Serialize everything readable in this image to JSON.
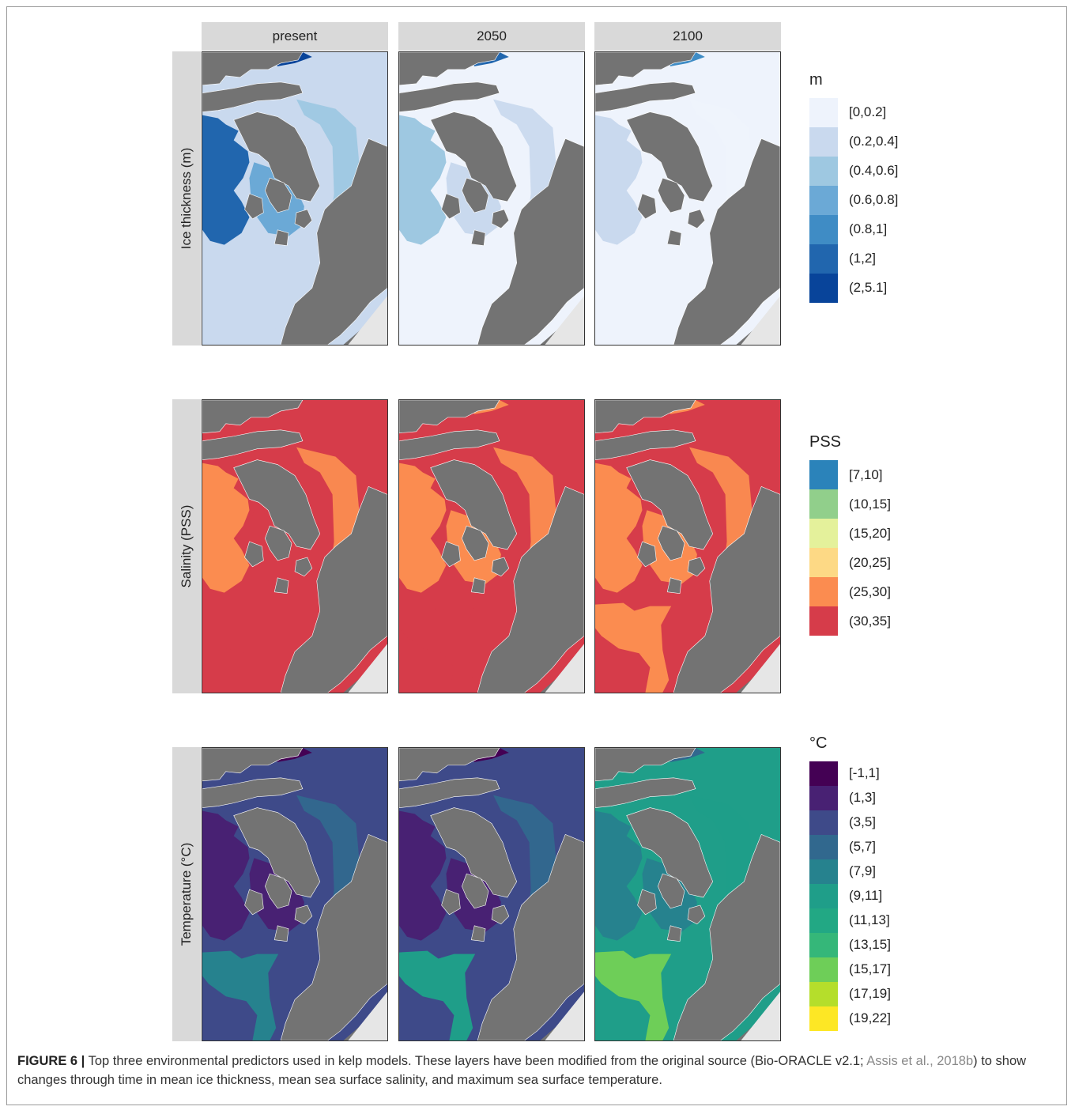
{
  "columns": [
    "present",
    "2050",
    "2100"
  ],
  "rows": [
    {
      "label": "Ice thickness (m)",
      "legend_title": "m",
      "classes": [
        {
          "label": "[0,0.2]",
          "color": "#eef3fc"
        },
        {
          "label": "(0.2,0.4]",
          "color": "#c9d9ee"
        },
        {
          "label": "(0.4,0.6]",
          "color": "#9ec8e1"
        },
        {
          "label": "(0.6,0.8]",
          "color": "#6ba9d6"
        },
        {
          "label": "(0.8,1]",
          "color": "#3f8cc5"
        },
        {
          "label": "(1,2]",
          "color": "#2166ae"
        },
        {
          "label": "(2,5.1]",
          "color": "#08449a"
        }
      ],
      "maps": [
        {
          "sea": 1,
          "fjord": 5,
          "bay": 1,
          "core": 3,
          "plume": 2,
          "north": 6
        },
        {
          "sea": 0,
          "fjord": 2,
          "bay": 0,
          "core": 1,
          "plume": 1,
          "north": 5
        },
        {
          "sea": 0,
          "fjord": 1,
          "bay": 0,
          "core": 0,
          "plume": 0,
          "north": 4
        }
      ]
    },
    {
      "label": "Salinity (PSS)",
      "legend_title": "PSS",
      "classes": [
        {
          "label": "[7,10]",
          "color": "#2b83ba"
        },
        {
          "label": "(10,15]",
          "color": "#91cf8b"
        },
        {
          "label": "(15,20]",
          "color": "#e4f19b"
        },
        {
          "label": "(20,25]",
          "color": "#fdd985"
        },
        {
          "label": "(25,30]",
          "color": "#fb8c50"
        },
        {
          "label": "(30,35]",
          "color": "#d63c4a"
        }
      ],
      "maps": [
        {
          "sea": 5,
          "fjord": 4,
          "bay": 5,
          "core": 5,
          "plume": 4,
          "north": 5
        },
        {
          "sea": 5,
          "fjord": 4,
          "bay": 5,
          "core": 4,
          "plume": 4,
          "north": 4
        },
        {
          "sea": 5,
          "fjord": 4,
          "bay": 4,
          "core": 4,
          "plume": 4,
          "north": 4
        }
      ]
    },
    {
      "label": "Temperature (°C)",
      "legend_title": "°C",
      "classes": [
        {
          "label": "[-1,1]",
          "color": "#440154"
        },
        {
          "label": "(1,3]",
          "color": "#482173"
        },
        {
          "label": "(3,5]",
          "color": "#3e4a89"
        },
        {
          "label": "(5,7]",
          "color": "#31688e"
        },
        {
          "label": "(7,9]",
          "color": "#26828e"
        },
        {
          "label": "(9,11]",
          "color": "#1f9e89"
        },
        {
          "label": "(11,13]",
          "color": "#22a884"
        },
        {
          "label": "(13,15]",
          "color": "#35b779"
        },
        {
          "label": "(15,17]",
          "color": "#6ece58"
        },
        {
          "label": "(17,19]",
          "color": "#b5de2b"
        },
        {
          "label": "(19,22]",
          "color": "#fde725"
        }
      ],
      "maps": [
        {
          "sea": 2,
          "fjord": 1,
          "bay": 4,
          "core": 1,
          "plume": 3,
          "north": 0
        },
        {
          "sea": 2,
          "fjord": 1,
          "bay": 5,
          "core": 1,
          "plume": 3,
          "north": 0
        },
        {
          "sea": 5,
          "fjord": 4,
          "bay": 8,
          "core": 4,
          "plume": 5,
          "north": 3
        }
      ]
    }
  ],
  "caption": {
    "label": "FIGURE 6 |",
    "text_1": " Top three environmental predictors used in kelp models. These layers have been modified from the original source (Bio-ORACLE v2.1; ",
    "cite": "Assis et al., 2018b",
    "text_2": ") to show changes through time in mean ice thickness, mean sea surface salinity, and maximum sea surface temperature."
  }
}
